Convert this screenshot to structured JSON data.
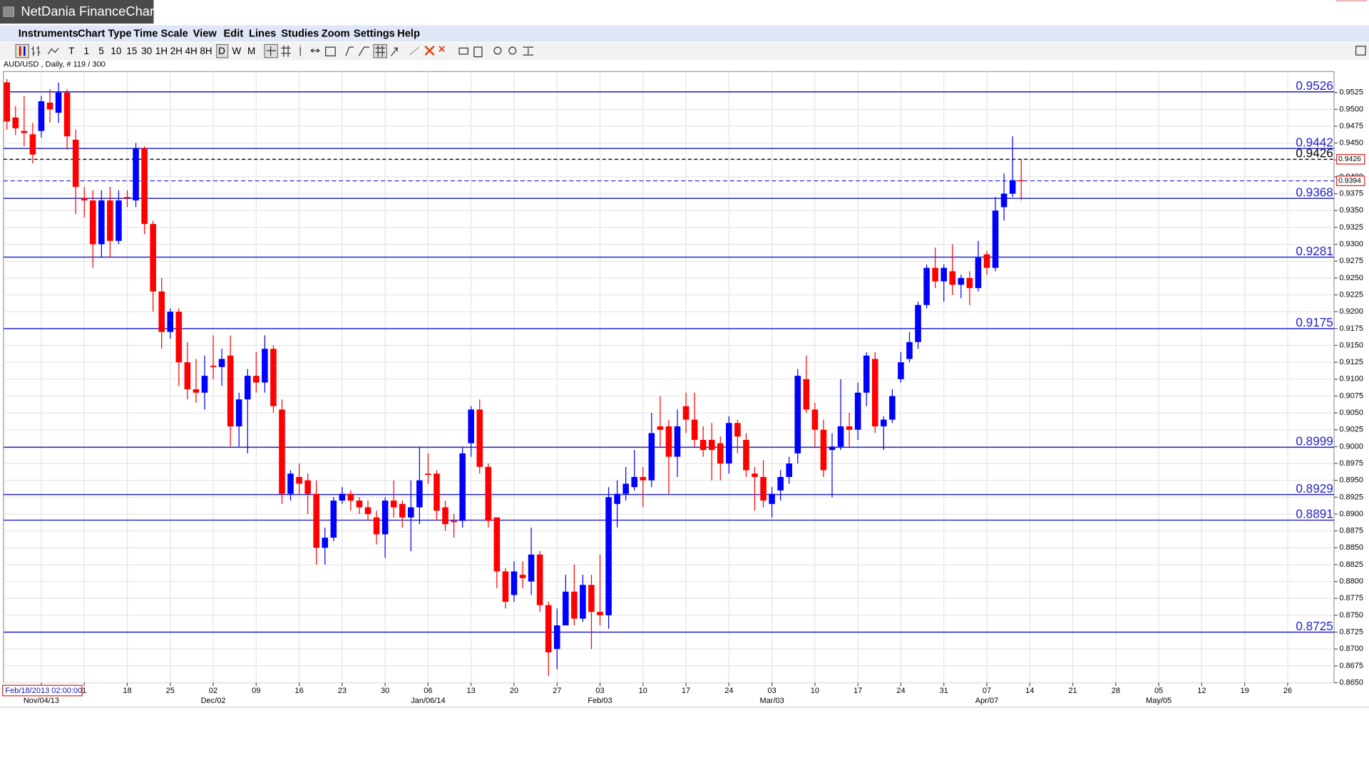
{
  "window": {
    "title": "NetDania FinanceChart",
    "menu": [
      "Instruments",
      "Chart Type",
      "Time Scale",
      "View",
      "Edit",
      "Lines",
      "Studies",
      "Zoom",
      "Settings",
      "Help"
    ],
    "toolbar": [
      "T",
      "1",
      "5",
      "10",
      "15",
      "30",
      "1H",
      "2H",
      "4H",
      "8H",
      "D",
      "W",
      "M"
    ]
  },
  "chart_data": {
    "type": "candlestick",
    "subtitle": "AUD/USD , Daily, # 119 / 300",
    "cursor_date": "Feb/18/2013 02:00:00",
    "up_color": "#0000ff",
    "down_color": "#ff0000",
    "level_color": "#2424c8",
    "grid": true,
    "x": [
      -4,
      -3,
      -2,
      -1,
      0,
      1,
      2,
      3,
      4,
      5,
      6,
      7,
      8,
      9,
      10,
      11,
      12,
      13,
      14,
      15,
      16,
      17,
      18,
      19,
      20,
      21,
      22,
      23,
      24,
      25,
      26,
      27,
      28,
      29,
      30,
      31,
      32,
      33,
      34,
      35,
      36,
      37,
      38,
      39,
      40,
      41,
      42,
      43,
      44,
      45,
      46,
      47,
      48,
      49,
      50,
      51,
      52,
      53,
      54,
      55,
      56,
      57,
      58,
      59,
      60,
      61,
      62,
      63,
      64,
      65,
      66,
      67,
      68,
      69,
      70,
      71,
      72,
      73,
      74,
      75,
      76,
      77,
      78,
      79,
      80,
      81,
      82,
      83,
      84,
      85,
      86,
      87,
      88,
      89,
      90,
      91,
      92,
      93,
      94,
      95,
      96,
      97,
      98,
      99,
      100,
      101,
      102,
      103,
      104,
      105,
      106,
      107,
      108,
      109,
      110,
      111,
      112,
      113,
      114
    ],
    "open": [
      0.954,
      0.9488,
      0.9468,
      0.9463,
      0.9468,
      0.951,
      0.9495,
      0.9525,
      0.9455,
      0.9368,
      0.9365,
      0.93,
      0.9365,
      0.9305,
      0.937,
      0.9365,
      0.9442,
      0.933,
      0.923,
      0.917,
      0.92,
      0.9125,
      0.9085,
      0.908,
      0.912,
      0.9118,
      0.9135,
      0.903,
      0.907,
      0.9105,
      0.9095,
      0.9145,
      0.9055,
      0.893,
      0.8955,
      0.895,
      0.893,
      0.885,
      0.8865,
      0.892,
      0.893,
      0.892,
      0.891,
      0.8895,
      0.887,
      0.892,
      0.8915,
      0.8895,
      0.891,
      0.896,
      0.896,
      0.891,
      0.889,
      0.889,
      0.9005,
      0.9055,
      0.897,
      0.8895,
      0.8815,
      0.878,
      0.881,
      0.88,
      0.884,
      0.8765,
      0.87,
      0.8735,
      0.8785,
      0.8745,
      0.8795,
      0.8755,
      0.875,
      0.8915,
      0.893,
      0.894,
      0.8955,
      0.895,
      0.903,
      0.903,
      0.8985,
      0.906,
      0.904,
      0.901,
      0.901,
      0.9005,
      0.8975,
      0.9035,
      0.901,
      0.896,
      0.8955,
      0.8915,
      0.8935,
      0.8955,
      0.899,
      0.91,
      0.9055,
      0.9025,
      0.8995,
      0.9,
      0.903,
      0.9025,
      0.908,
      0.913,
      0.903,
      0.904,
      0.91,
      0.913,
      0.9155,
      0.921,
      0.9265,
      0.9245,
      0.926,
      0.924,
      0.925,
      0.9235,
      0.9285,
      0.9265,
      0.9355,
      0.9375,
      0.9395
    ],
    "high": [
      0.9545,
      0.9505,
      0.952,
      0.948,
      0.952,
      0.953,
      0.954,
      0.953,
      0.947,
      0.9385,
      0.938,
      0.938,
      0.9385,
      0.938,
      0.938,
      0.945,
      0.9445,
      0.9335,
      0.925,
      0.9205,
      0.9205,
      0.9155,
      0.913,
      0.9135,
      0.9165,
      0.9145,
      0.9165,
      0.908,
      0.9115,
      0.914,
      0.9165,
      0.915,
      0.907,
      0.8965,
      0.8975,
      0.896,
      0.895,
      0.888,
      0.8925,
      0.894,
      0.8935,
      0.8925,
      0.892,
      0.8905,
      0.8925,
      0.895,
      0.892,
      0.895,
      0.9,
      0.899,
      0.8965,
      0.892,
      0.89,
      0.9,
      0.906,
      0.907,
      0.8975,
      0.8895,
      0.882,
      0.883,
      0.883,
      0.888,
      0.8845,
      0.877,
      0.876,
      0.881,
      0.8825,
      0.881,
      0.881,
      0.884,
      0.894,
      0.895,
      0.897,
      0.8995,
      0.897,
      0.905,
      0.9075,
      0.904,
      0.9055,
      0.908,
      0.908,
      0.903,
      0.9035,
      0.9015,
      0.9045,
      0.904,
      0.902,
      0.897,
      0.898,
      0.894,
      0.8965,
      0.8985,
      0.9115,
      0.9135,
      0.9065,
      0.904,
      0.902,
      0.91,
      0.905,
      0.9095,
      0.914,
      0.914,
      0.9045,
      0.9085,
      0.914,
      0.917,
      0.9215,
      0.927,
      0.9295,
      0.927,
      0.93,
      0.9255,
      0.926,
      0.9305,
      0.929,
      0.937,
      0.9405,
      0.946,
      0.9425
    ],
    "low": [
      0.947,
      0.9462,
      0.9445,
      0.942,
      0.9458,
      0.948,
      0.948,
      0.944,
      0.9345,
      0.934,
      0.9265,
      0.928,
      0.928,
      0.93,
      0.9355,
      0.9355,
      0.9315,
      0.92,
      0.9145,
      0.916,
      0.909,
      0.907,
      0.9065,
      0.9055,
      0.91,
      0.909,
      0.9,
      0.9,
      0.899,
      0.908,
      0.908,
      0.905,
      0.8915,
      0.892,
      0.893,
      0.89,
      0.8825,
      0.8825,
      0.886,
      0.8915,
      0.8905,
      0.89,
      0.889,
      0.8855,
      0.8835,
      0.8895,
      0.888,
      0.8845,
      0.8885,
      0.8945,
      0.889,
      0.8875,
      0.8865,
      0.888,
      0.8985,
      0.896,
      0.888,
      0.879,
      0.876,
      0.877,
      0.879,
      0.878,
      0.8755,
      0.866,
      0.867,
      0.8735,
      0.8735,
      0.874,
      0.87,
      0.8735,
      0.873,
      0.888,
      0.892,
      0.8935,
      0.891,
      0.894,
      0.9,
      0.893,
      0.8955,
      0.902,
      0.9,
      0.8985,
      0.895,
      0.895,
      0.896,
      0.899,
      0.8955,
      0.8905,
      0.891,
      0.8895,
      0.892,
      0.8945,
      0.8975,
      0.905,
      0.9,
      0.8955,
      0.8925,
      0.8995,
      0.9,
      0.901,
      0.906,
      0.902,
      0.8995,
      0.9035,
      0.9095,
      0.9125,
      0.9145,
      0.9205,
      0.9235,
      0.9215,
      0.9225,
      0.922,
      0.921,
      0.923,
      0.9255,
      0.926,
      0.9335,
      0.937,
      0.9365
    ],
    "close": [
      0.9482,
      0.9472,
      0.9465,
      0.9433,
      0.9512,
      0.95,
      0.9525,
      0.946,
      0.9385,
      0.9365,
      0.93,
      0.9365,
      0.9305,
      0.9365,
      0.9368,
      0.9442,
      0.933,
      0.923,
      0.917,
      0.92,
      0.9125,
      0.9085,
      0.908,
      0.9105,
      0.9118,
      0.913,
      0.903,
      0.907,
      0.9105,
      0.9095,
      0.9145,
      0.906,
      0.893,
      0.896,
      0.8945,
      0.893,
      0.885,
      0.8865,
      0.892,
      0.893,
      0.892,
      0.891,
      0.89,
      0.887,
      0.892,
      0.891,
      0.8895,
      0.891,
      0.895,
      0.8958,
      0.8905,
      0.8885,
      0.8888,
      0.899,
      0.9055,
      0.897,
      0.889,
      0.8815,
      0.877,
      0.8815,
      0.8805,
      0.884,
      0.8765,
      0.8695,
      0.8735,
      0.8785,
      0.8745,
      0.8795,
      0.8755,
      0.875,
      0.8925,
      0.893,
      0.8945,
      0.8955,
      0.895,
      0.902,
      0.9025,
      0.8985,
      0.903,
      0.904,
      0.901,
      0.8995,
      0.8995,
      0.8975,
      0.9035,
      0.9015,
      0.8965,
      0.8955,
      0.892,
      0.893,
      0.8955,
      0.8975,
      0.9105,
      0.9055,
      0.9025,
      0.8965,
      0.9,
      0.903,
      0.9025,
      0.908,
      0.9135,
      0.903,
      0.904,
      0.9075,
      0.9125,
      0.9155,
      0.921,
      0.9265,
      0.9245,
      0.9265,
      0.924,
      0.925,
      0.9235,
      0.928,
      0.9265,
      0.935,
      0.9375,
      0.9395,
      0.9394
    ],
    "levels": [
      0.9526,
      0.9442,
      0.9368,
      0.9281,
      0.9175,
      0.8999,
      0.8929,
      0.8891,
      0.8725
    ],
    "reference_line": 0.9426,
    "last_price": 0.9394,
    "xlim": [
      -4.4,
      150.4
    ],
    "ylim": [
      0.865,
      0.9556
    ],
    "yticks": [
      {
        "value": 0.865,
        "label": "0.8650"
      },
      0.8675,
      {
        "value": 0.87,
        "label": "0.8700"
      },
      0.8725,
      {
        "value": 0.875,
        "label": "0.8750"
      },
      0.8775,
      {
        "value": 0.88,
        "label": "0.8800"
      },
      0.8825,
      {
        "value": 0.885,
        "label": "0.8850"
      },
      0.8875,
      {
        "value": 0.89,
        "label": "0.8900"
      },
      0.8925,
      {
        "value": 0.895,
        "label": "0.8950"
      },
      0.8975,
      {
        "value": 0.9,
        "label": "0.9000"
      },
      0.9025,
      {
        "value": 0.905,
        "label": "0.9050"
      },
      0.9075,
      {
        "value": 0.91,
        "label": "0.9100"
      },
      0.9125,
      {
        "value": 0.915,
        "label": "0.9150"
      },
      0.9175,
      {
        "value": 0.92,
        "label": "0.9200"
      },
      0.9225,
      {
        "value": 0.925,
        "label": "0.9250"
      },
      0.9275,
      {
        "value": 0.93,
        "label": "0.9300"
      },
      0.9325,
      {
        "value": 0.935,
        "label": "0.9350"
      },
      0.9375,
      {
        "value": 0.94,
        "label": "0.9400"
      },
      0.9425,
      {
        "value": 0.945,
        "label": "0.9450"
      },
      0.9475,
      {
        "value": 0.95,
        "label": "0.9500"
      },
      0.9525
    ],
    "xticks": [
      {
        "value": 5,
        "label": "1"
      },
      {
        "value": 10,
        "label": "18"
      },
      {
        "value": 15,
        "label": "25"
      },
      {
        "value": 20,
        "label": "02"
      },
      {
        "value": 25,
        "label": "09"
      },
      {
        "value": 30,
        "label": "16"
      },
      {
        "value": 35,
        "label": "23"
      },
      {
        "value": 40,
        "label": "30"
      },
      {
        "value": 45,
        "label": "06"
      },
      {
        "value": 50,
        "label": "13"
      },
      {
        "value": 55,
        "label": "20"
      },
      {
        "value": 60,
        "label": "27"
      },
      {
        "value": 65,
        "label": "03"
      },
      {
        "value": 70,
        "label": "10"
      },
      {
        "value": 75,
        "label": "17"
      },
      {
        "value": 80,
        "label": "24"
      },
      {
        "value": 85,
        "label": "03"
      },
      {
        "value": 90,
        "label": "10"
      },
      {
        "value": 95,
        "label": "17"
      },
      {
        "value": 100,
        "label": "24"
      },
      {
        "value": 105,
        "label": "31"
      },
      {
        "value": 110,
        "label": "07"
      },
      {
        "value": 115,
        "label": "14"
      },
      {
        "value": 120,
        "label": "21"
      },
      {
        "value": 125,
        "label": "28"
      },
      {
        "value": 130,
        "label": "05"
      },
      {
        "value": 135,
        "label": "12"
      },
      {
        "value": 140,
        "label": "19"
      },
      {
        "value": 145,
        "label": "26"
      }
    ],
    "xticks2": [
      {
        "value": 0,
        "label": "Nov/04/13"
      },
      {
        "value": 20,
        "label": "Dec/02"
      },
      {
        "value": 45,
        "label": "Jan/06/14"
      },
      {
        "value": 65,
        "label": "Feb/03"
      },
      {
        "value": 85,
        "label": "Mar/03"
      },
      {
        "value": 110,
        "label": "Apr/07"
      },
      {
        "value": 130,
        "label": "May/05"
      }
    ]
  }
}
